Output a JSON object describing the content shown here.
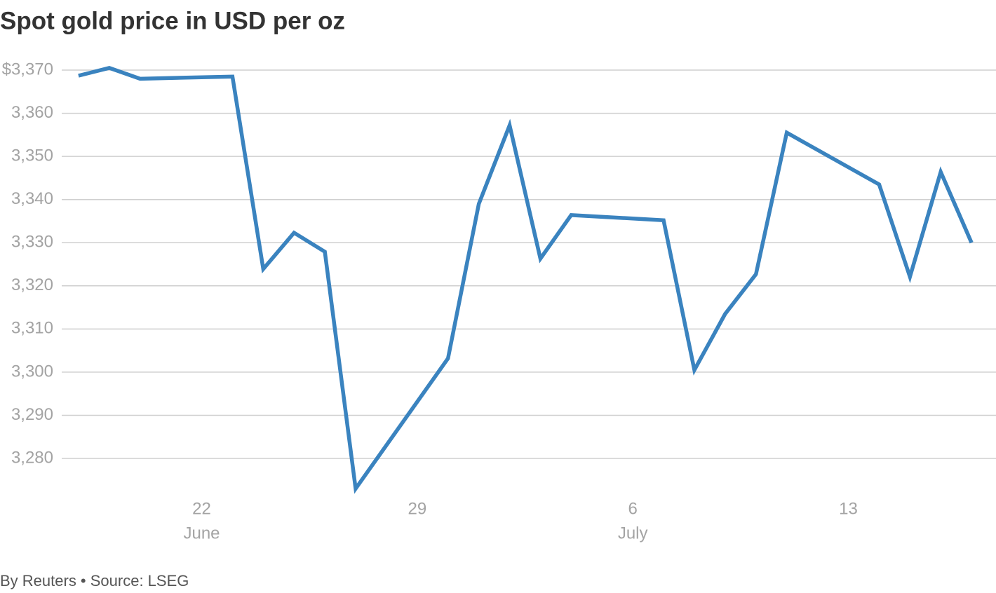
{
  "chart_data": {
    "type": "line",
    "title": "Spot gold price in USD per oz",
    "footer": "By Reuters • Source: LSEG",
    "x": [
      "June 18",
      "June 19",
      "June 20",
      "June 23",
      "June 24",
      "June 25",
      "June 26",
      "June 27",
      "June 30",
      "July 1",
      "July 2",
      "July 3",
      "July 4",
      "July 7",
      "July 8",
      "July 9",
      "July 10",
      "July 11",
      "July 14",
      "July 15",
      "July 16",
      "July 17"
    ],
    "values": [
      3368.7,
      3370.5,
      3368.0,
      3368.5,
      3323.9,
      3332.3,
      3327.9,
      3273.0,
      3303.2,
      3339.0,
      3357.2,
      3326.3,
      3336.4,
      3335.2,
      3300.5,
      3313.5,
      3322.7,
      3355.5,
      3343.5,
      3322.1,
      3346.4,
      3330.0
    ],
    "color": "#3a83bf",
    "xlim": [
      "June 17",
      "July 18"
    ],
    "xticks": [
      {
        "value": "June 22",
        "label": "22"
      },
      {
        "value": "June 29",
        "label": "29"
      },
      {
        "value": "July 6",
        "label": "6"
      },
      {
        "value": "July 13",
        "label": "13"
      }
    ],
    "x_month_labels": [
      {
        "value": "June 22",
        "label": "June"
      },
      {
        "value": "July 6",
        "label": "July"
      }
    ],
    "ylim": [
      3270,
      3372
    ],
    "yticks": [
      {
        "value": 3370,
        "label": "$3,370"
      },
      {
        "value": 3360,
        "label": "3,360"
      },
      {
        "value": 3350,
        "label": "3,350"
      },
      {
        "value": 3340,
        "label": "3,340"
      },
      {
        "value": 3330,
        "label": "3,330"
      },
      {
        "value": 3320,
        "label": "3,320"
      },
      {
        "value": 3310,
        "label": "3,310"
      },
      {
        "value": 3300,
        "label": "3,300"
      },
      {
        "value": 3290,
        "label": "3,290"
      },
      {
        "value": 3280,
        "label": "3,280"
      }
    ],
    "grid": true
  }
}
